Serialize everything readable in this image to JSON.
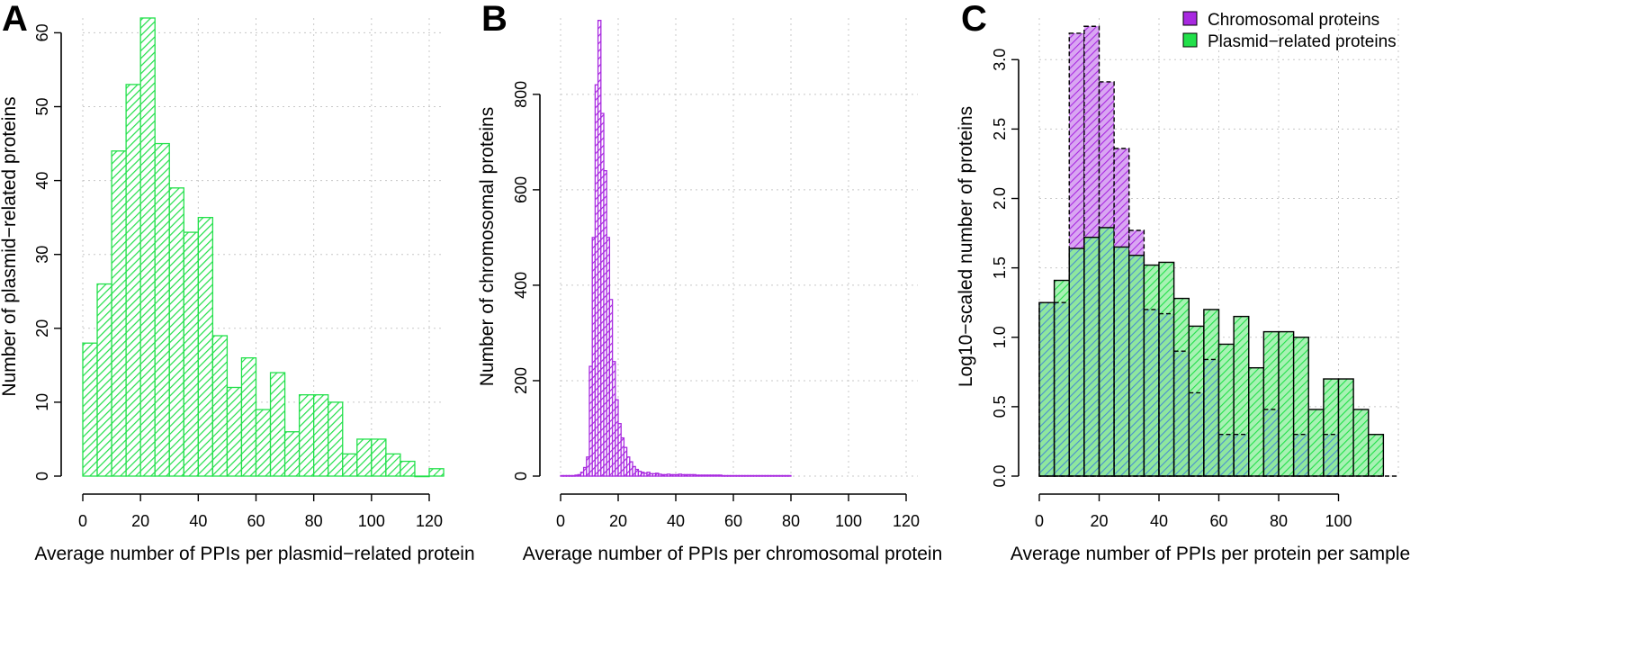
{
  "colors": {
    "plasmid": "#22e04a",
    "chromosomal": "#a829e0",
    "overlap": "#4aa6c8"
  },
  "panels": [
    {
      "letter": "A",
      "xlabel": "Average number of PPIs per plasmid−related protein",
      "ylabel": "Number of plasmid−related proteins"
    },
    {
      "letter": "B",
      "xlabel": "Average number of PPIs per chromosomal protein",
      "ylabel": "Number of chromosomal proteins"
    },
    {
      "letter": "C",
      "xlabel": "Average number of PPIs per protein per sample",
      "ylabel": "Log10−scaled number of proteins"
    }
  ],
  "legend": {
    "chromosomal": "Chromosomal proteins",
    "plasmid": "Plasmid−related proteins"
  },
  "chart_data": [
    {
      "type": "bar",
      "panel": "A",
      "xlabel": "Average number of PPIs per plasmid−related protein",
      "ylabel": "Number of plasmid−related proteins",
      "xlim": [
        0,
        120
      ],
      "ylim": [
        0,
        62
      ],
      "xticks": [
        0,
        20,
        40,
        60,
        80,
        100,
        120
      ],
      "yticks": [
        0,
        10,
        20,
        30,
        40,
        50,
        60
      ],
      "bin_width": 5,
      "bin_starts": [
        0,
        5,
        10,
        15,
        20,
        25,
        30,
        35,
        40,
        45,
        50,
        55,
        60,
        65,
        70,
        75,
        80,
        85,
        90,
        95,
        100,
        105,
        110,
        115,
        120
      ],
      "values": [
        18,
        26,
        44,
        53,
        62,
        45,
        39,
        33,
        35,
        19,
        12,
        16,
        9,
        14,
        6,
        11,
        11,
        10,
        3,
        5,
        5,
        3,
        2,
        0,
        1
      ],
      "color": "#22e04a",
      "grid": true
    },
    {
      "type": "bar",
      "panel": "B",
      "xlabel": "Average number of PPIs per chromosomal protein",
      "ylabel": "Number of chromosomal proteins",
      "xlim": [
        0,
        120
      ],
      "ylim": [
        0,
        960
      ],
      "xticks": [
        0,
        20,
        40,
        60,
        80,
        100,
        120
      ],
      "yticks": [
        0,
        200,
        400,
        600,
        800
      ],
      "bin_width": 1,
      "bin_starts": [
        0,
        1,
        2,
        3,
        4,
        5,
        6,
        7,
        8,
        9,
        10,
        11,
        12,
        13,
        14,
        15,
        16,
        17,
        18,
        19,
        20,
        21,
        22,
        23,
        24,
        25,
        26,
        27,
        28,
        29,
        30,
        31,
        32,
        33,
        34,
        35,
        36,
        37,
        38,
        39,
        40,
        41,
        42,
        43,
        44,
        45,
        46,
        47,
        48,
        49,
        50,
        51,
        52,
        53,
        54,
        55,
        56,
        57,
        58,
        59,
        60,
        61,
        62,
        63,
        64,
        65,
        66,
        67,
        68,
        69,
        70,
        71,
        72,
        73,
        74,
        75,
        76,
        77,
        78,
        79
      ],
      "values": [
        1,
        1,
        1,
        1,
        1,
        2,
        3,
        8,
        18,
        40,
        230,
        500,
        820,
        955,
        760,
        640,
        500,
        370,
        240,
        160,
        110,
        80,
        60,
        40,
        30,
        20,
        14,
        10,
        8,
        6,
        8,
        5,
        5,
        6,
        4,
        3,
        3,
        4,
        3,
        3,
        3,
        4,
        3,
        3,
        3,
        3,
        3,
        2,
        2,
        2,
        2,
        2,
        2,
        2,
        2,
        2,
        1,
        1,
        1,
        1,
        1,
        1,
        1,
        1,
        1,
        1,
        1,
        1,
        1,
        1,
        1,
        1,
        1,
        1,
        1,
        1,
        1,
        1,
        1,
        1
      ],
      "color": "#a829e0",
      "grid": true
    },
    {
      "type": "bar",
      "panel": "C",
      "xlabel": "Average number of PPIs per protein per sample",
      "ylabel": "Log10−scaled number of proteins",
      "xlim": [
        0,
        120
      ],
      "ylim": [
        0,
        3.3
      ],
      "xticks": [
        0,
        20,
        40,
        60,
        80,
        100
      ],
      "yticks": [
        0.0,
        0.5,
        1.0,
        1.5,
        2.0,
        2.5,
        3.0
      ],
      "bin_width": 5,
      "bin_starts": [
        0,
        5,
        10,
        15,
        20,
        25,
        30,
        35,
        40,
        45,
        50,
        55,
        60,
        65,
        70,
        75,
        80,
        85,
        90,
        95,
        100,
        105,
        110
      ],
      "series": [
        {
          "name": "Chromosomal proteins",
          "color": "#a829e0",
          "values": [
            1.25,
            1.25,
            3.19,
            3.24,
            2.84,
            2.36,
            1.77,
            1.2,
            1.17,
            0.9,
            0.6,
            0.84,
            0.3,
            0.3,
            0.0,
            0.48,
            0.0,
            0.3,
            0.0,
            0.3,
            0.0,
            0.0,
            0.0
          ]
        },
        {
          "name": "Plasmid−related proteins",
          "color": "#22e04a",
          "values": [
            1.25,
            1.41,
            1.64,
            1.72,
            1.79,
            1.65,
            1.59,
            1.52,
            1.54,
            1.28,
            1.08,
            1.2,
            0.95,
            1.15,
            0.78,
            1.04,
            1.04,
            1.0,
            0.48,
            0.7,
            0.7,
            0.48,
            0.3
          ]
        }
      ],
      "legend_position": "top-right",
      "grid": true
    }
  ]
}
